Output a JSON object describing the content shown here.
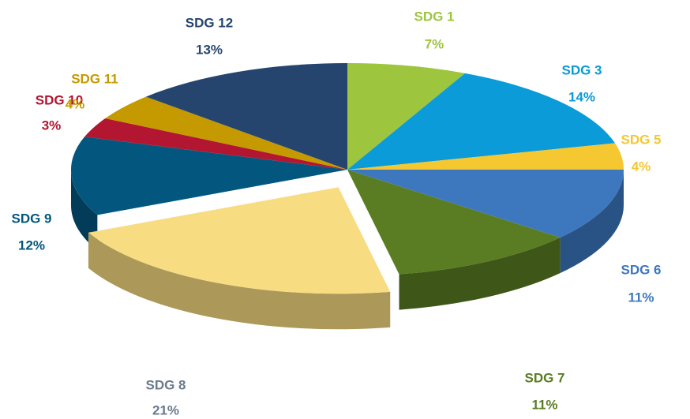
{
  "chart_data": {
    "type": "pie3d",
    "categories": [
      "SDG 1",
      "SDG 3",
      "SDG 5",
      "SDG 6",
      "SDG 7",
      "SDG 8",
      "SDG 9",
      "SDG 10",
      "SDG 11",
      "SDG 12"
    ],
    "values": [
      7,
      14,
      4,
      11,
      11,
      21,
      12,
      3,
      4,
      13
    ],
    "value_labels": [
      "7%",
      "14%",
      "4%",
      "11%",
      "11%",
      "21%",
      "12%",
      "3%",
      "4%",
      "13%"
    ],
    "colors": [
      "#9dc53e",
      "#0a9bd8",
      "#f5c730",
      "#3d78bf",
      "#5a7d23",
      "#f7dc82",
      "#03577f",
      "#b21630",
      "#c49a00",
      "#25456f"
    ],
    "label_colors": [
      "#9dc53e",
      "#0a9bd8",
      "#f5c730",
      "#3d78bf",
      "#5a7d23",
      "#6b7b8e",
      "#03577f",
      "#b21630",
      "#c49a00",
      "#25456f"
    ],
    "exploded": "SDG 8"
  }
}
